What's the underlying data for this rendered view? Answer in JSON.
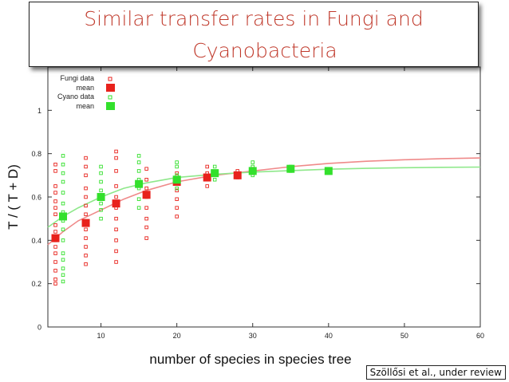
{
  "slide": {
    "title_line1": "Similar transfer rates in Fungi and",
    "title_line2": "Cyanobacteria",
    "citation": "Szöllősi et al., under review"
  },
  "chart_data": {
    "type": "scatter",
    "xlabel": "number of species in species tree",
    "ylabel": "T / ( T + D)",
    "xlim": [
      3,
      60
    ],
    "ylim": [
      0,
      1.2
    ],
    "xticks": [
      10,
      20,
      30,
      40,
      50,
      60
    ],
    "yticks": [
      0,
      0.2,
      0.4,
      0.6,
      0.8,
      1
    ],
    "legend": [
      "Fungi data",
      "mean",
      "Cyano data",
      "mean"
    ],
    "legend_position": "top-left",
    "colors": {
      "fungi": "#e8221c",
      "cyano": "#33e02c",
      "fungi_curve": "#ef8a8a",
      "cyano_curve": "#8ee88a"
    },
    "series": [
      {
        "name": "Fungi data",
        "kind": "points",
        "color": "#e8221c",
        "points": [
          [
            4,
            0.2
          ],
          [
            4,
            0.22
          ],
          [
            4,
            0.26
          ],
          [
            4,
            0.3
          ],
          [
            4,
            0.34
          ],
          [
            4,
            0.37
          ],
          [
            4,
            0.4
          ],
          [
            4,
            0.44
          ],
          [
            4,
            0.47
          ],
          [
            4,
            0.52
          ],
          [
            4,
            0.55
          ],
          [
            4,
            0.58
          ],
          [
            4,
            0.62
          ],
          [
            4,
            0.65
          ],
          [
            4,
            0.72
          ],
          [
            4,
            0.75
          ],
          [
            8,
            0.29
          ],
          [
            8,
            0.33
          ],
          [
            8,
            0.37
          ],
          [
            8,
            0.41
          ],
          [
            8,
            0.45
          ],
          [
            8,
            0.48
          ],
          [
            8,
            0.52
          ],
          [
            8,
            0.56
          ],
          [
            8,
            0.6
          ],
          [
            8,
            0.64
          ],
          [
            8,
            0.7
          ],
          [
            8,
            0.74
          ],
          [
            8,
            0.78
          ],
          [
            12,
            0.3
          ],
          [
            12,
            0.35
          ],
          [
            12,
            0.4
          ],
          [
            12,
            0.45
          ],
          [
            12,
            0.5
          ],
          [
            12,
            0.55
          ],
          [
            12,
            0.6
          ],
          [
            12,
            0.65
          ],
          [
            12,
            0.72
          ],
          [
            12,
            0.78
          ],
          [
            12,
            0.81
          ],
          [
            16,
            0.41
          ],
          [
            16,
            0.46
          ],
          [
            16,
            0.5
          ],
          [
            16,
            0.55
          ],
          [
            16,
            0.6
          ],
          [
            16,
            0.64
          ],
          [
            16,
            0.68
          ],
          [
            16,
            0.73
          ],
          [
            20,
            0.51
          ],
          [
            20,
            0.55
          ],
          [
            20,
            0.59
          ],
          [
            20,
            0.63
          ],
          [
            20,
            0.67
          ],
          [
            20,
            0.71
          ],
          [
            24,
            0.65
          ],
          [
            24,
            0.68
          ],
          [
            24,
            0.71
          ],
          [
            24,
            0.74
          ],
          [
            28,
            0.69
          ],
          [
            28,
            0.72
          ],
          [
            30,
            0.71
          ],
          [
            30,
            0.73
          ]
        ]
      },
      {
        "name": "Fungi mean",
        "kind": "mean",
        "color": "#e8221c",
        "points": [
          [
            4,
            0.41
          ],
          [
            8,
            0.48
          ],
          [
            12,
            0.57
          ],
          [
            16,
            0.61
          ],
          [
            20,
            0.67
          ],
          [
            24,
            0.69
          ],
          [
            28,
            0.7
          ]
        ]
      },
      {
        "name": "Cyano data",
        "kind": "points",
        "color": "#33e02c",
        "points": [
          [
            5,
            0.21
          ],
          [
            5,
            0.24
          ],
          [
            5,
            0.27
          ],
          [
            5,
            0.31
          ],
          [
            5,
            0.34
          ],
          [
            5,
            0.4
          ],
          [
            5,
            0.45
          ],
          [
            5,
            0.49
          ],
          [
            5,
            0.53
          ],
          [
            5,
            0.57
          ],
          [
            5,
            0.62
          ],
          [
            5,
            0.67
          ],
          [
            5,
            0.71
          ],
          [
            5,
            0.75
          ],
          [
            5,
            0.79
          ],
          [
            10,
            0.5
          ],
          [
            10,
            0.54
          ],
          [
            10,
            0.57
          ],
          [
            10,
            0.63
          ],
          [
            10,
            0.67
          ],
          [
            10,
            0.71
          ],
          [
            10,
            0.74
          ],
          [
            15,
            0.55
          ],
          [
            15,
            0.59
          ],
          [
            15,
            0.64
          ],
          [
            15,
            0.68
          ],
          [
            15,
            0.72
          ],
          [
            15,
            0.76
          ],
          [
            15,
            0.79
          ],
          [
            20,
            0.64
          ],
          [
            20,
            0.67
          ],
          [
            20,
            0.7
          ],
          [
            20,
            0.74
          ],
          [
            20,
            0.76
          ],
          [
            25,
            0.68
          ],
          [
            25,
            0.71
          ],
          [
            25,
            0.74
          ],
          [
            30,
            0.7
          ],
          [
            30,
            0.72
          ],
          [
            30,
            0.74
          ],
          [
            30,
            0.76
          ],
          [
            35,
            0.72
          ],
          [
            35,
            0.74
          ]
        ]
      },
      {
        "name": "Cyano mean",
        "kind": "mean",
        "color": "#33e02c",
        "points": [
          [
            5,
            0.51
          ],
          [
            10,
            0.6
          ],
          [
            15,
            0.66
          ],
          [
            20,
            0.68
          ],
          [
            25,
            0.71
          ],
          [
            30,
            0.72
          ],
          [
            35,
            0.73
          ],
          [
            40,
            0.72
          ]
        ]
      },
      {
        "name": "Fungi fit",
        "kind": "curve",
        "color": "#ef8a8a",
        "points": [
          [
            3,
            0.38
          ],
          [
            5,
            0.44
          ],
          [
            7,
            0.49
          ],
          [
            10,
            0.54
          ],
          [
            13,
            0.59
          ],
          [
            16,
            0.63
          ],
          [
            20,
            0.67
          ],
          [
            25,
            0.7
          ],
          [
            30,
            0.72
          ],
          [
            35,
            0.74
          ],
          [
            40,
            0.755
          ],
          [
            45,
            0.765
          ],
          [
            50,
            0.772
          ],
          [
            55,
            0.777
          ],
          [
            60,
            0.78
          ]
        ]
      },
      {
        "name": "Cyano fit",
        "kind": "curve",
        "color": "#8ee88a",
        "points": [
          [
            3,
            0.46
          ],
          [
            5,
            0.51
          ],
          [
            7,
            0.55
          ],
          [
            10,
            0.6
          ],
          [
            13,
            0.64
          ],
          [
            16,
            0.665
          ],
          [
            20,
            0.69
          ],
          [
            25,
            0.705
          ],
          [
            30,
            0.715
          ],
          [
            35,
            0.722
          ],
          [
            40,
            0.728
          ],
          [
            45,
            0.732
          ],
          [
            50,
            0.735
          ],
          [
            55,
            0.737
          ],
          [
            60,
            0.738
          ]
        ]
      }
    ]
  }
}
